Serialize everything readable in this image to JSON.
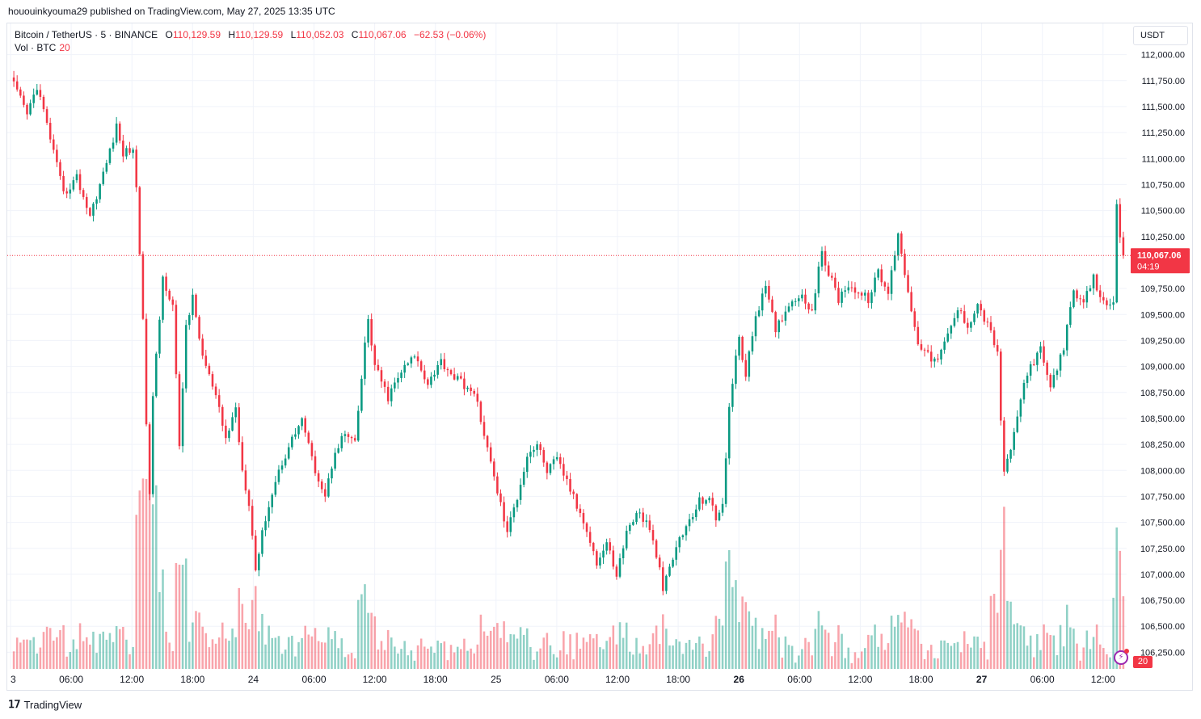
{
  "publish_line": "hououinkyouma29 published on TradingView.com, May 27, 2025 13:35 UTC",
  "legend": {
    "symbol": "Bitcoin / TetherUS · 5 · BINANCE",
    "open_label": "O",
    "open": "110,129.59",
    "high_label": "H",
    "high": "110,129.59",
    "low_label": "L",
    "low": "110,052.03",
    "close_label": "C",
    "close": "110,067.06",
    "change": "−62.53 (−0.06%)",
    "vol_label": "Vol · BTC",
    "vol_value": "20"
  },
  "currency_button": "USDT",
  "price_tag": {
    "price": "110,067.06",
    "countdown": "04:19"
  },
  "volume_tag": "20",
  "footer_brand": "TradingView",
  "colors": {
    "up": "#089981",
    "down": "#f23645",
    "grid": "#f0f3fa",
    "axis_text": "#131722"
  },
  "icons": {
    "assistant": "lightning-icon",
    "brand": "tradingview-logo-icon"
  },
  "chart_data": {
    "type": "candlestick",
    "interval": "5",
    "y_axis_ticks": [
      "112,000.00",
      "111,750.00",
      "111,500.00",
      "111,250.00",
      "111,000.00",
      "110,750.00",
      "110,500.00",
      "110,250.00",
      "109,750.00",
      "109,500.00",
      "109,250.00",
      "109,000.00",
      "108,750.00",
      "108,500.00",
      "108,250.00",
      "108,000.00",
      "107,750.00",
      "107,500.00",
      "107,250.00",
      "107,000.00",
      "106,750.00",
      "106,500.00",
      "106,250.00"
    ],
    "ylim": [
      106090,
      112300
    ],
    "x_axis_ticks": [
      {
        "label": "3",
        "bold": false
      },
      {
        "label": "06:00",
        "bold": false
      },
      {
        "label": "12:00",
        "bold": false
      },
      {
        "label": "18:00",
        "bold": false
      },
      {
        "label": "24",
        "bold": false
      },
      {
        "label": "06:00",
        "bold": false
      },
      {
        "label": "12:00",
        "bold": false
      },
      {
        "label": "18:00",
        "bold": false
      },
      {
        "label": "25",
        "bold": false
      },
      {
        "label": "06:00",
        "bold": false
      },
      {
        "label": "12:00",
        "bold": false
      },
      {
        "label": "18:00",
        "bold": false
      },
      {
        "label": "26",
        "bold": true
      },
      {
        "label": "06:00",
        "bold": false
      },
      {
        "label": "12:00",
        "bold": false
      },
      {
        "label": "18:00",
        "bold": false
      },
      {
        "label": "27",
        "bold": true
      },
      {
        "label": "06:00",
        "bold": false
      },
      {
        "label": "12:00",
        "bold": false
      }
    ],
    "last_price": 110067.06,
    "close_path": [
      [
        0,
        111780
      ],
      [
        5,
        111420
      ],
      [
        8,
        111700
      ],
      [
        12,
        111200
      ],
      [
        16,
        110650
      ],
      [
        20,
        110820
      ],
      [
        24,
        110450
      ],
      [
        28,
        110850
      ],
      [
        32,
        111300
      ],
      [
        34,
        111050
      ],
      [
        37,
        111100
      ],
      [
        38,
        110700
      ],
      [
        40,
        109500
      ],
      [
        41,
        108400
      ],
      [
        42,
        107800
      ],
      [
        43,
        108700
      ],
      [
        46,
        109850
      ],
      [
        49,
        109600
      ],
      [
        51,
        108200
      ],
      [
        53,
        109400
      ],
      [
        55,
        109650
      ],
      [
        58,
        109100
      ],
      [
        62,
        108700
      ],
      [
        65,
        108300
      ],
      [
        68,
        108600
      ],
      [
        70,
        108000
      ],
      [
        72,
        107700
      ],
      [
        74,
        107050
      ],
      [
        77,
        107550
      ],
      [
        81,
        108000
      ],
      [
        85,
        108300
      ],
      [
        88,
        108500
      ],
      [
        91,
        108100
      ],
      [
        95,
        107750
      ],
      [
        98,
        108200
      ],
      [
        101,
        108350
      ],
      [
        104,
        108250
      ],
      [
        107,
        109200
      ],
      [
        108,
        109450
      ],
      [
        110,
        109000
      ],
      [
        114,
        108700
      ],
      [
        118,
        108950
      ],
      [
        122,
        109100
      ],
      [
        126,
        108850
      ],
      [
        130,
        109050
      ],
      [
        134,
        108900
      ],
      [
        138,
        108800
      ],
      [
        141,
        108650
      ],
      [
        144,
        108200
      ],
      [
        147,
        107800
      ],
      [
        150,
        107400
      ],
      [
        153,
        107750
      ],
      [
        156,
        108150
      ],
      [
        159,
        108250
      ],
      [
        162,
        108000
      ],
      [
        165,
        108100
      ],
      [
        168,
        107900
      ],
      [
        171,
        107650
      ],
      [
        174,
        107450
      ],
      [
        177,
        107100
      ],
      [
        180,
        107300
      ],
      [
        183,
        107000
      ],
      [
        186,
        107400
      ],
      [
        189,
        107600
      ],
      [
        192,
        107500
      ],
      [
        195,
        107200
      ],
      [
        197,
        106850
      ],
      [
        199,
        107050
      ],
      [
        202,
        107350
      ],
      [
        205,
        107500
      ],
      [
        208,
        107700
      ],
      [
        211,
        107750
      ],
      [
        213,
        107500
      ],
      [
        215,
        107700
      ],
      [
        217,
        108600
      ],
      [
        220,
        109300
      ],
      [
        222,
        108900
      ],
      [
        225,
        109500
      ],
      [
        228,
        109750
      ],
      [
        231,
        109350
      ],
      [
        234,
        109550
      ],
      [
        238,
        109700
      ],
      [
        242,
        109550
      ],
      [
        245,
        110100
      ],
      [
        247,
        109900
      ],
      [
        250,
        109650
      ],
      [
        253,
        109800
      ],
      [
        256,
        109700
      ],
      [
        259,
        109650
      ],
      [
        262,
        109900
      ],
      [
        265,
        109700
      ],
      [
        268,
        110300
      ],
      [
        269,
        110100
      ],
      [
        271,
        109700
      ],
      [
        274,
        109250
      ],
      [
        277,
        109100
      ],
      [
        280,
        109050
      ],
      [
        283,
        109300
      ],
      [
        286,
        109550
      ],
      [
        289,
        109400
      ],
      [
        292,
        109600
      ],
      [
        295,
        109400
      ],
      [
        298,
        109150
      ],
      [
        299,
        108500
      ],
      [
        300,
        107950
      ],
      [
        303,
        108350
      ],
      [
        305,
        108700
      ],
      [
        308,
        109000
      ],
      [
        311,
        109150
      ],
      [
        314,
        108800
      ],
      [
        316,
        109000
      ],
      [
        318,
        109200
      ],
      [
        321,
        109700
      ],
      [
        324,
        109600
      ],
      [
        327,
        109850
      ],
      [
        330,
        109600
      ],
      [
        333,
        109650
      ],
      [
        334,
        110550
      ],
      [
        335,
        110200
      ],
      [
        336,
        110067.06
      ]
    ]
  }
}
